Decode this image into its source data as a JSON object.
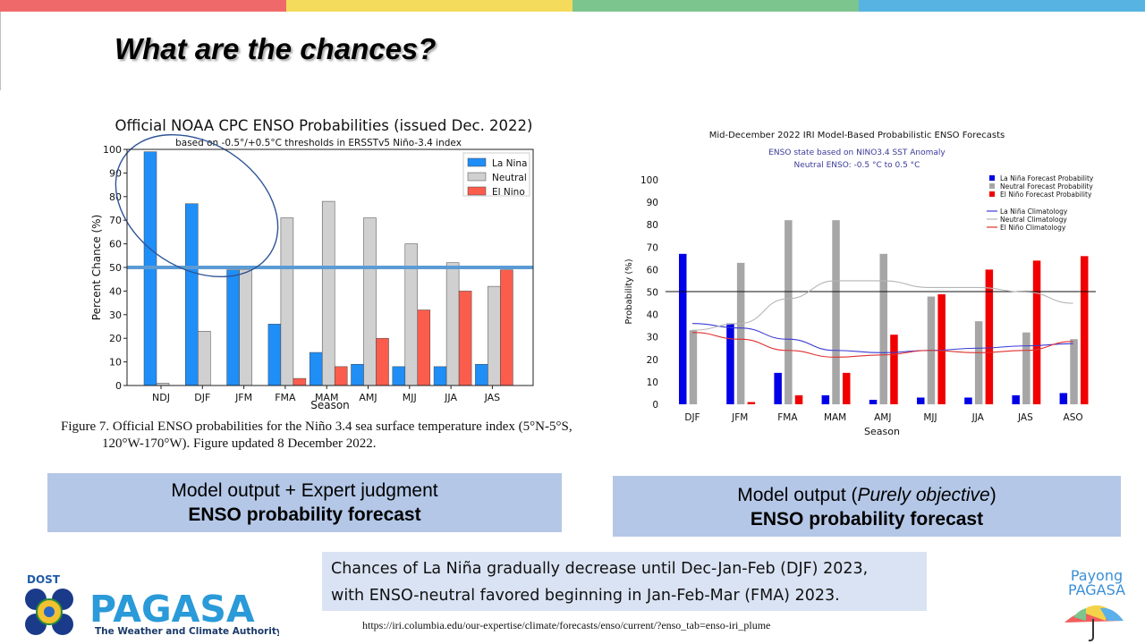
{
  "slide": {
    "title": "What are the chances?",
    "colors": [
      "#f0696a",
      "#f4db5b",
      "#7cc58e",
      "#56b3e2"
    ]
  },
  "left_caption": {
    "line1": "Figure 7. Official ENSO probabilities for the Niño 3.4 sea surface temperature index (5°N-5°S,",
    "line2": "120°W-170°W). Figure updated 8 December 2022."
  },
  "left_box": {
    "line1": "Model output + Expert judgment",
    "line2": "ENSO probability forecast"
  },
  "right_box": {
    "line1_pre": "Model output (",
    "line1_italic": "Purely objective",
    "line1_post": ")",
    "line2": "ENSO probability forecast"
  },
  "summary": {
    "line1": "Chances of La Niña gradually decrease until Dec-Jan-Feb (DJF) 2023,",
    "line2": "with ENSO-neutral favored beginning in Jan-Feb-Mar (FMA) 2023."
  },
  "source_url": "https://iri.columbia.edu/our-expertise/climate/forecasts/enso/current/?enso_tab=enso-iri_plume",
  "logos": {
    "left_top": "DOST",
    "left_main": "PAGASA",
    "left_sub": "The Weather and Climate Authority",
    "right_line1": "Payong",
    "right_line2": "PAGASA"
  },
  "chart_data": [
    {
      "type": "bar",
      "title": "Official NOAA CPC ENSO Probabilities (issued Dec. 2022)",
      "subtitle": "based on -0.5°/+0.5°C thresholds in ERSSTv5 Niño-3.4 index",
      "xlabel": "Season",
      "ylabel": "Percent Chance (%)",
      "ylim": [
        0,
        100
      ],
      "yticks": [
        0,
        10,
        20,
        30,
        40,
        50,
        60,
        70,
        80,
        90,
        100
      ],
      "legend_position": "top-right",
      "categories": [
        "NDJ",
        "DJF",
        "JFM",
        "FMA",
        "MAM",
        "AMJ",
        "MJJ",
        "JJA",
        "JAS"
      ],
      "series": [
        {
          "name": "La Nina",
          "color": "#1f8ef7",
          "values": [
            99,
            77,
            49,
            26,
            14,
            9,
            8,
            8,
            9
          ]
        },
        {
          "name": "Neutral",
          "color": "#d0d0d0",
          "values": [
            1,
            23,
            49,
            71,
            78,
            71,
            60,
            52,
            42
          ]
        },
        {
          "name": "El Nino",
          "color": "#fb5d4d",
          "values": [
            0,
            0,
            0,
            3,
            8,
            20,
            32,
            40,
            49
          ]
        }
      ],
      "reference_line": 50
    },
    {
      "type": "bar",
      "title": "Mid-December 2022 IRI Model-Based Probabilistic ENSO Forecasts",
      "subtitle_lines": [
        "ENSO state based on NINO3.4 SST Anomaly",
        "Neutral ENSO: -0.5 °C to 0.5 °C"
      ],
      "xlabel": "Season",
      "ylabel": "Probability (%)",
      "ylim": [
        0,
        100
      ],
      "yticks": [
        0,
        10,
        20,
        30,
        40,
        50,
        60,
        70,
        80,
        90,
        100
      ],
      "legend_position": "top-right",
      "categories": [
        "DJF",
        "JFM",
        "FMA",
        "MAM",
        "AMJ",
        "MJJ",
        "JJA",
        "JAS",
        "ASO"
      ],
      "series": [
        {
          "name": "La Niña Forecast Probability",
          "color": "#0000e6",
          "values": [
            67,
            36,
            14,
            4,
            2,
            3,
            3,
            4,
            5
          ]
        },
        {
          "name": "Neutral Forecast Probability",
          "color": "#a6a6a6",
          "values": [
            33,
            63,
            82,
            82,
            67,
            48,
            37,
            32,
            29
          ]
        },
        {
          "name": "El Niño Forecast Probability",
          "color": "#f00000",
          "values": [
            0,
            1,
            4,
            14,
            31,
            49,
            60,
            64,
            66
          ]
        }
      ],
      "climatology": [
        {
          "name": "La Niña Climatology",
          "color": "#3a3ad4",
          "values": [
            36,
            34,
            29,
            24,
            23,
            24,
            25,
            26,
            27
          ]
        },
        {
          "name": "Neutral Climatology",
          "color": "#b5b5b5",
          "values": [
            33,
            36,
            47,
            55,
            55,
            52,
            52,
            50,
            45
          ]
        },
        {
          "name": "El Niño Climatology",
          "color": "#e03030",
          "values": [
            32,
            29,
            24,
            21,
            22,
            24,
            23,
            24,
            28
          ]
        }
      ],
      "reference_line": 50
    }
  ]
}
